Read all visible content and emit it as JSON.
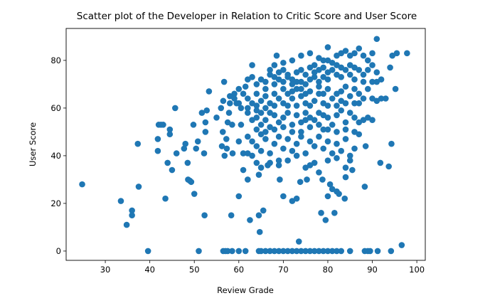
{
  "chart_data": {
    "type": "scatter",
    "title": "Scatter plot of the Developer in Relation to Critic Score and User Score",
    "xlabel": "Review Grade",
    "ylabel": "User Score",
    "xlim": [
      21.2,
      101.9
    ],
    "ylim": [
      -3.9,
      93.4
    ],
    "xticks": [
      30,
      40,
      50,
      60,
      70,
      80,
      90,
      100
    ],
    "yticks": [
      0,
      20,
      40,
      60,
      80
    ],
    "grid": false,
    "color": "#1f77b4",
    "points": [
      [
        24.8,
        28
      ],
      [
        33.5,
        21
      ],
      [
        34.8,
        11
      ],
      [
        36,
        17
      ],
      [
        36,
        15
      ],
      [
        37.5,
        27
      ],
      [
        37.3,
        45
      ],
      [
        39.6,
        0
      ],
      [
        41.8,
        47
      ],
      [
        41.8,
        42
      ],
      [
        42,
        53
      ],
      [
        42.5,
        53
      ],
      [
        43,
        53
      ],
      [
        43.5,
        22
      ],
      [
        44,
        37
      ],
      [
        44.5,
        49
      ],
      [
        44.5,
        51
      ],
      [
        45,
        34
      ],
      [
        45.7,
        60
      ],
      [
        46,
        41
      ],
      [
        47.7,
        43
      ],
      [
        48,
        45
      ],
      [
        48.5,
        37
      ],
      [
        48.6,
        30
      ],
      [
        49,
        29.5
      ],
      [
        49.3,
        29
      ],
      [
        49.8,
        53
      ],
      [
        50,
        24
      ],
      [
        50.4,
        43
      ],
      [
        50.8,
        46
      ],
      [
        51,
        0
      ],
      [
        51.7,
        58
      ],
      [
        52.2,
        41
      ],
      [
        52.3,
        15
      ],
      [
        52.5,
        50
      ],
      [
        52.5,
        54
      ],
      [
        52.8,
        59
      ],
      [
        53.3,
        67
      ],
      [
        55,
        56
      ],
      [
        56,
        60
      ],
      [
        56.2,
        44
      ],
      [
        56.4,
        50
      ],
      [
        56.5,
        63
      ],
      [
        56.7,
        71
      ],
      [
        56.8,
        40
      ],
      [
        57.2,
        47
      ],
      [
        57.3,
        43
      ],
      [
        57.5,
        54
      ],
      [
        57.8,
        58
      ],
      [
        58,
        65
      ],
      [
        58.3,
        15
      ],
      [
        58.5,
        53
      ],
      [
        58.6,
        41
      ],
      [
        59,
        66
      ],
      [
        59.5,
        62
      ],
      [
        60,
        46
      ],
      [
        60,
        23
      ],
      [
        60.5,
        60
      ],
      [
        60.5,
        53
      ],
      [
        61,
        34
      ],
      [
        61,
        41
      ],
      [
        61.5,
        69
      ],
      [
        62,
        30
      ],
      [
        62.5,
        13
      ],
      [
        63,
        78
      ],
      [
        64,
        37
      ],
      [
        64.5,
        32
      ],
      [
        64.5,
        15
      ],
      [
        64.7,
        8
      ],
      [
        65.5,
        17
      ],
      [
        66.5,
        36
      ],
      [
        68.5,
        82
      ],
      [
        69,
        38
      ],
      [
        69.2,
        30
      ],
      [
        70,
        23
      ],
      [
        72,
        21
      ],
      [
        73,
        22
      ],
      [
        73.8,
        29
      ],
      [
        75.3,
        30
      ],
      [
        78,
        33
      ],
      [
        78.5,
        16
      ],
      [
        78.8,
        30
      ],
      [
        79.5,
        13
      ],
      [
        80,
        23
      ],
      [
        80.5,
        28
      ],
      [
        81,
        26
      ],
      [
        81.5,
        16
      ],
      [
        82,
        25
      ],
      [
        82.5,
        24
      ],
      [
        83.8,
        22
      ],
      [
        84,
        31
      ],
      [
        85.5,
        34
      ],
      [
        88.5,
        44
      ],
      [
        88.3,
        27
      ],
      [
        91.8,
        37
      ],
      [
        93.7,
        35.5
      ],
      [
        94.3,
        45
      ],
      [
        95.2,
        68
      ],
      [
        94,
        77
      ],
      [
        94.5,
        82
      ],
      [
        95.5,
        83
      ],
      [
        97.8,
        83
      ],
      [
        91,
        89
      ],
      [
        96.6,
        2.5
      ],
      [
        73.5,
        4
      ],
      [
        80,
        85.5
      ],
      [
        56.5,
        0
      ],
      [
        57,
        0
      ],
      [
        57.5,
        0
      ],
      [
        58.5,
        0
      ],
      [
        60,
        0
      ],
      [
        61.5,
        0
      ],
      [
        64.5,
        0
      ],
      [
        65,
        0
      ],
      [
        66,
        0
      ],
      [
        67,
        0
      ],
      [
        68,
        0
      ],
      [
        69,
        0
      ],
      [
        70,
        0
      ],
      [
        71,
        0
      ],
      [
        72,
        0
      ],
      [
        73,
        0
      ],
      [
        74,
        0
      ],
      [
        75,
        0
      ],
      [
        76,
        0
      ],
      [
        77,
        0
      ],
      [
        78,
        0
      ],
      [
        79,
        0
      ],
      [
        80,
        0
      ],
      [
        81,
        0
      ],
      [
        82,
        0
      ],
      [
        83,
        0
      ],
      [
        85,
        0
      ],
      [
        88.3,
        0
      ],
      [
        89,
        0
      ],
      [
        89.5,
        0
      ],
      [
        91.2,
        0
      ],
      [
        94.2,
        0
      ],
      [
        76,
        83
      ],
      [
        78,
        81
      ],
      [
        80,
        80
      ],
      [
        82,
        82
      ],
      [
        83,
        83
      ],
      [
        84,
        84
      ],
      [
        85,
        82
      ],
      [
        86,
        83
      ],
      [
        87,
        85
      ],
      [
        88,
        82
      ],
      [
        89,
        80
      ],
      [
        90,
        83
      ],
      [
        79,
        80
      ],
      [
        81,
        79
      ],
      [
        77,
        78
      ],
      [
        74,
        82
      ],
      [
        72,
        80
      ],
      [
        70,
        79
      ],
      [
        67,
        76
      ],
      [
        68,
        78
      ],
      [
        62,
        72
      ],
      [
        63,
        73
      ],
      [
        64,
        70
      ],
      [
        65,
        72
      ],
      [
        66,
        71
      ],
      [
        67,
        74
      ],
      [
        68,
        73
      ],
      [
        69,
        75
      ],
      [
        70,
        76
      ],
      [
        71,
        74
      ],
      [
        72,
        72
      ],
      [
        73,
        75
      ],
      [
        74,
        76
      ],
      [
        75,
        74
      ],
      [
        76,
        77
      ],
      [
        77,
        75
      ],
      [
        78,
        76
      ],
      [
        79,
        77
      ],
      [
        80,
        75
      ],
      [
        81,
        76
      ],
      [
        82,
        78
      ],
      [
        83,
        77
      ],
      [
        84,
        76
      ],
      [
        85,
        78
      ],
      [
        86,
        77
      ],
      [
        87,
        76
      ],
      [
        88,
        74
      ],
      [
        89,
        76
      ],
      [
        90,
        78
      ],
      [
        91,
        75
      ],
      [
        92,
        72
      ],
      [
        91,
        71
      ],
      [
        90,
        71
      ],
      [
        83,
        73
      ],
      [
        80,
        72
      ],
      [
        78,
        71
      ],
      [
        76,
        72
      ],
      [
        74,
        71
      ],
      [
        72,
        70
      ],
      [
        70,
        71
      ],
      [
        68,
        70
      ],
      [
        66,
        68
      ],
      [
        86,
        72
      ],
      [
        88,
        71
      ],
      [
        85,
        74
      ],
      [
        82,
        74
      ],
      [
        79,
        73
      ],
      [
        77,
        73
      ],
      [
        75,
        70
      ],
      [
        73,
        71
      ],
      [
        71,
        73
      ],
      [
        69,
        72
      ],
      [
        58,
        62
      ],
      [
        59,
        64
      ],
      [
        60,
        68
      ],
      [
        61,
        66
      ],
      [
        62,
        64
      ],
      [
        63,
        62
      ],
      [
        64,
        66
      ],
      [
        65,
        63
      ],
      [
        66,
        65
      ],
      [
        67,
        62
      ],
      [
        68,
        66
      ],
      [
        69,
        64
      ],
      [
        70,
        62
      ],
      [
        71,
        66
      ],
      [
        72,
        64
      ],
      [
        73,
        61
      ],
      [
        74,
        65
      ],
      [
        75,
        62
      ],
      [
        76,
        67
      ],
      [
        77,
        63
      ],
      [
        78,
        66
      ],
      [
        79,
        62
      ],
      [
        80,
        68
      ],
      [
        81,
        64
      ],
      [
        82,
        66
      ],
      [
        83,
        63
      ],
      [
        84,
        69
      ],
      [
        85,
        65
      ],
      [
        86,
        62
      ],
      [
        87,
        66
      ],
      [
        88,
        64
      ],
      [
        89,
        68
      ],
      [
        90,
        64
      ],
      [
        91,
        63
      ],
      [
        92,
        64
      ],
      [
        93,
        64
      ],
      [
        86,
        68
      ],
      [
        84,
        62
      ],
      [
        82,
        61
      ],
      [
        80,
        61
      ],
      [
        78,
        69
      ],
      [
        76,
        61
      ],
      [
        74,
        68
      ],
      [
        72,
        67
      ],
      [
        70,
        68
      ],
      [
        68,
        61
      ],
      [
        66,
        60
      ],
      [
        64,
        61
      ],
      [
        62,
        60
      ],
      [
        60,
        62
      ],
      [
        75,
        66
      ],
      [
        73,
        68
      ],
      [
        71,
        61
      ],
      [
        79,
        66
      ],
      [
        83,
        67
      ],
      [
        87,
        62
      ],
      [
        62,
        58
      ],
      [
        63,
        55
      ],
      [
        64,
        56
      ],
      [
        65,
        53
      ],
      [
        66,
        55
      ],
      [
        67,
        52
      ],
      [
        68,
        57
      ],
      [
        69,
        54
      ],
      [
        70,
        56
      ],
      [
        71,
        58
      ],
      [
        72,
        53
      ],
      [
        73,
        57
      ],
      [
        74,
        54
      ],
      [
        75,
        58
      ],
      [
        76,
        52
      ],
      [
        77,
        55
      ],
      [
        78,
        58
      ],
      [
        79,
        51
      ],
      [
        80,
        56
      ],
      [
        81,
        53
      ],
      [
        82,
        57
      ],
      [
        83,
        59
      ],
      [
        84,
        54
      ],
      [
        85,
        58
      ],
      [
        86,
        56
      ],
      [
        87,
        54
      ],
      [
        88,
        55
      ],
      [
        89,
        56
      ],
      [
        90,
        55
      ],
      [
        64,
        51
      ],
      [
        66,
        50
      ],
      [
        68,
        51
      ],
      [
        70,
        52
      ],
      [
        72,
        50
      ],
      [
        74,
        50
      ],
      [
        76,
        56
      ],
      [
        78,
        53
      ],
      [
        80,
        51
      ],
      [
        82,
        50
      ],
      [
        84,
        51
      ],
      [
        86,
        50
      ],
      [
        64,
        59
      ],
      [
        67,
        58
      ],
      [
        75,
        55
      ],
      [
        79,
        57
      ],
      [
        65,
        58
      ],
      [
        62,
        48
      ],
      [
        63,
        46
      ],
      [
        64,
        44
      ],
      [
        65,
        42
      ],
      [
        66,
        47
      ],
      [
        67,
        41
      ],
      [
        68,
        45
      ],
      [
        69,
        48
      ],
      [
        70,
        43
      ],
      [
        71,
        47
      ],
      [
        72,
        42
      ],
      [
        73,
        45
      ],
      [
        74,
        48
      ],
      [
        75,
        41
      ],
      [
        76,
        46
      ],
      [
        77,
        44
      ],
      [
        78,
        48
      ],
      [
        79,
        43
      ],
      [
        80,
        46
      ],
      [
        81,
        41
      ],
      [
        82,
        45
      ],
      [
        83,
        42
      ],
      [
        84,
        47
      ],
      [
        85,
        40
      ],
      [
        86,
        43
      ],
      [
        87,
        49
      ],
      [
        63,
        40
      ],
      [
        65,
        49
      ],
      [
        73,
        40
      ],
      [
        77,
        37
      ],
      [
        71,
        38
      ],
      [
        69,
        36
      ],
      [
        75,
        35
      ],
      [
        67,
        37
      ],
      [
        76,
        36
      ],
      [
        80,
        38
      ],
      [
        82,
        39
      ],
      [
        85,
        38
      ],
      [
        84,
        35
      ],
      [
        65,
        35
      ],
      [
        62,
        41
      ]
    ]
  }
}
